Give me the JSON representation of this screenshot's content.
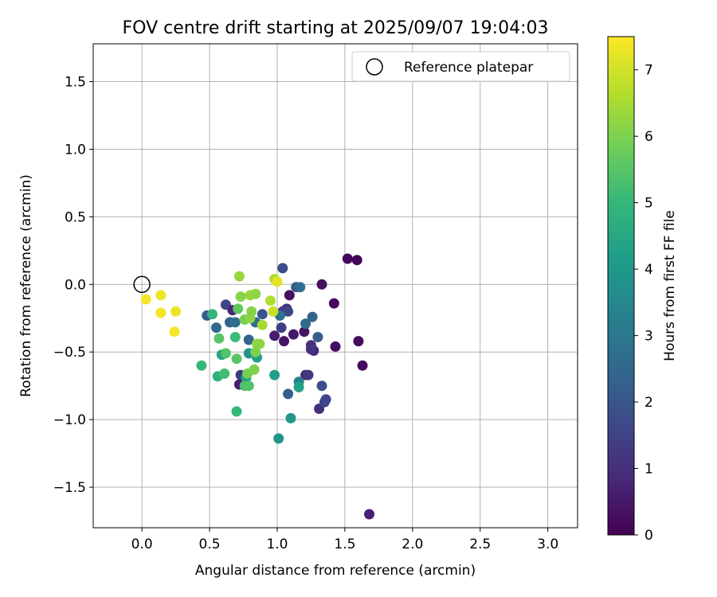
{
  "chart_data": {
    "type": "scatter",
    "title": "FOV centre drift starting at 2025/09/07 19:04:03",
    "xlabel": "Angular distance from reference (arcmin)",
    "ylabel": "Rotation from reference (arcmin)",
    "xlim": [
      -0.36,
      3.22
    ],
    "ylim": [
      -1.8,
      1.78
    ],
    "xticks": [
      0.0,
      0.5,
      1.0,
      1.5,
      2.0,
      2.5,
      3.0
    ],
    "xtick_labels": [
      "0.0",
      "0.5",
      "1.0",
      "1.5",
      "2.0",
      "2.5",
      "3.0"
    ],
    "yticks": [
      1.5,
      1.0,
      0.5,
      0.0,
      -0.5,
      -1.0,
      -1.5
    ],
    "ytick_labels": [
      "1.5",
      "1.0",
      "0.5",
      "0.0",
      "−0.5",
      "−1.0",
      "−1.5"
    ],
    "grid": true,
    "legend": {
      "position": "top-right",
      "label": "Reference platepar",
      "marker": "open-circle"
    },
    "reference_point": {
      "x": 0.0,
      "y": 0.0
    },
    "colorbar": {
      "label": "Hours from first FF file",
      "min": 0,
      "max": 7.5,
      "ticks": [
        0,
        1,
        2,
        3,
        4,
        5,
        6,
        7
      ],
      "tick_labels": [
        "0",
        "1",
        "2",
        "3",
        "4",
        "5",
        "6",
        "7"
      ],
      "colormap": "viridis",
      "colors": [
        "#440154",
        "#482878",
        "#3e4989",
        "#31688e",
        "#26828e",
        "#1f9e89",
        "#35b779",
        "#6ece58",
        "#b5de2b",
        "#fde725"
      ]
    },
    "points_columns": [
      "x",
      "y",
      "hours"
    ],
    "points": [
      [
        1.52,
        0.19,
        0.1
      ],
      [
        1.59,
        0.18,
        0.1
      ],
      [
        1.33,
        0.0,
        0.3
      ],
      [
        1.42,
        -0.14,
        0.2
      ],
      [
        1.09,
        -0.08,
        0.3
      ],
      [
        1.6,
        -0.42,
        0.2
      ],
      [
        1.63,
        -0.6,
        0.2
      ],
      [
        1.43,
        -0.46,
        0.3
      ],
      [
        1.68,
        -1.7,
        0.7
      ],
      [
        1.2,
        -0.35,
        0.4
      ],
      [
        1.12,
        -0.37,
        0.5
      ],
      [
        1.05,
        -0.42,
        0.4
      ],
      [
        0.98,
        -0.38,
        0.6
      ],
      [
        1.03,
        -0.32,
        1.4
      ],
      [
        1.07,
        -0.18,
        1.1
      ],
      [
        1.04,
        -0.2,
        1.3
      ],
      [
        1.08,
        -0.2,
        1.6
      ],
      [
        1.04,
        0.12,
        1.8
      ],
      [
        1.14,
        -0.02,
        2.1
      ],
      [
        1.17,
        -0.02,
        2.7
      ],
      [
        1.25,
        -0.45,
        1.0
      ],
      [
        1.27,
        -0.49,
        0.8
      ],
      [
        1.25,
        -0.48,
        1.1
      ],
      [
        1.21,
        -0.67,
        0.9
      ],
      [
        1.23,
        -0.67,
        1.2
      ],
      [
        1.31,
        -0.92,
        1.0
      ],
      [
        1.35,
        -0.87,
        1.5
      ],
      [
        1.36,
        -0.85,
        1.6
      ],
      [
        1.33,
        -0.75,
        1.8
      ],
      [
        1.3,
        -0.39,
        2.2
      ],
      [
        1.26,
        -0.24,
        2.4
      ],
      [
        1.21,
        -0.29,
        2.6
      ],
      [
        1.08,
        -0.81,
        2.2
      ],
      [
        1.16,
        -0.72,
        3.3
      ],
      [
        1.16,
        -0.76,
        4.3
      ],
      [
        1.1,
        -0.99,
        4.0
      ],
      [
        1.01,
        -1.14,
        3.9
      ],
      [
        0.98,
        -0.67,
        4.2
      ],
      [
        1.02,
        -0.23,
        2.8
      ],
      [
        0.89,
        -0.22,
        2.0
      ],
      [
        0.84,
        -0.28,
        2.6
      ],
      [
        0.79,
        -0.41,
        2.4
      ],
      [
        0.79,
        -0.51,
        3.8
      ],
      [
        0.85,
        -0.54,
        4.2
      ],
      [
        0.62,
        -0.15,
        1.6
      ],
      [
        0.65,
        -0.28,
        2.3
      ],
      [
        0.69,
        -0.28,
        2.8
      ],
      [
        0.48,
        -0.23,
        2.1
      ],
      [
        0.55,
        -0.32,
        2.5
      ],
      [
        0.67,
        -0.19,
        0.8
      ],
      [
        0.72,
        -0.74,
        0.6
      ],
      [
        0.73,
        -0.67,
        1.2
      ],
      [
        0.77,
        -0.69,
        4.2
      ],
      [
        0.76,
        -0.75,
        5.3
      ],
      [
        0.79,
        -0.75,
        5.4
      ],
      [
        0.78,
        -0.66,
        5.9
      ],
      [
        0.83,
        -0.63,
        6.0
      ],
      [
        0.7,
        -0.94,
        5.0
      ],
      [
        0.56,
        -0.68,
        4.8
      ],
      [
        0.61,
        -0.66,
        5.2
      ],
      [
        0.44,
        -0.6,
        5.0
      ],
      [
        0.59,
        -0.52,
        4.4
      ],
      [
        0.62,
        -0.51,
        5.4
      ],
      [
        0.57,
        -0.4,
        5.5
      ],
      [
        0.69,
        -0.39,
        5.1
      ],
      [
        0.7,
        -0.55,
        5.5
      ],
      [
        0.52,
        -0.22,
        4.9
      ],
      [
        0.71,
        -0.18,
        5.6
      ],
      [
        0.76,
        -0.26,
        5.9
      ],
      [
        0.8,
        -0.25,
        6.2
      ],
      [
        0.81,
        -0.2,
        6.1
      ],
      [
        0.8,
        -0.08,
        6.3
      ],
      [
        0.84,
        -0.07,
        6.2
      ],
      [
        0.73,
        -0.09,
        6.1
      ],
      [
        0.72,
        0.06,
        6.3
      ],
      [
        0.85,
        -0.44,
        6.3
      ],
      [
        0.87,
        -0.44,
        6.2
      ],
      [
        0.84,
        -0.5,
        6.0
      ],
      [
        0.89,
        -0.3,
        6.5
      ],
      [
        0.95,
        -0.12,
        6.6
      ],
      [
        0.97,
        -0.2,
        6.9
      ],
      [
        0.98,
        0.04,
        6.6
      ],
      [
        1.0,
        0.02,
        7.2
      ],
      [
        0.03,
        -0.11,
        7.4
      ],
      [
        0.14,
        -0.08,
        7.3
      ],
      [
        0.14,
        -0.21,
        7.4
      ],
      [
        0.25,
        -0.2,
        7.3
      ],
      [
        0.24,
        -0.35,
        7.4
      ]
    ]
  }
}
